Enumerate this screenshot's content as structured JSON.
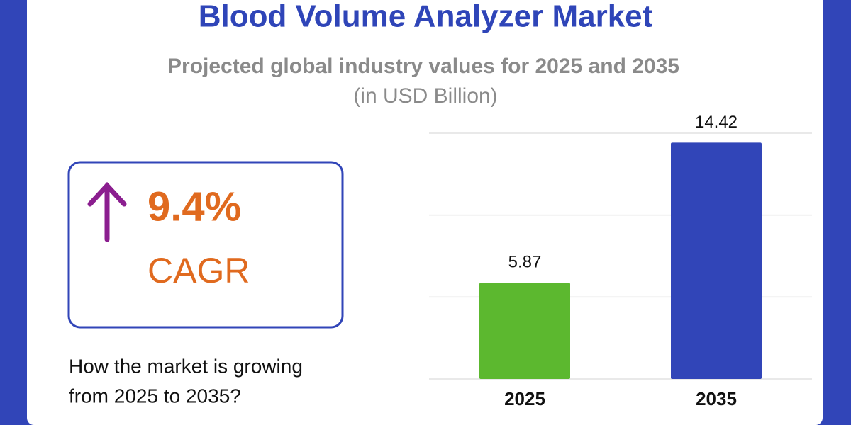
{
  "header": {
    "title": "Blood Volume Analyzer Market",
    "subtitle": "Projected global industry values for 2025 and 2035",
    "unit": "(in USD Billion)"
  },
  "cagr": {
    "value": "9.4%",
    "label": "CAGR"
  },
  "question": [
    "How the market is growing",
    "from 2025 to 2035?"
  ],
  "chart_data": {
    "type": "bar",
    "categories": [
      "2025",
      "2035"
    ],
    "series": [
      {
        "values": [
          5.87,
          14.42
        ],
        "colors": [
          "#5cb82f",
          "#3145b8"
        ]
      }
    ],
    "ylim": [
      0,
      15
    ],
    "yticks": [
      0,
      5,
      10,
      15
    ],
    "grid": true
  }
}
